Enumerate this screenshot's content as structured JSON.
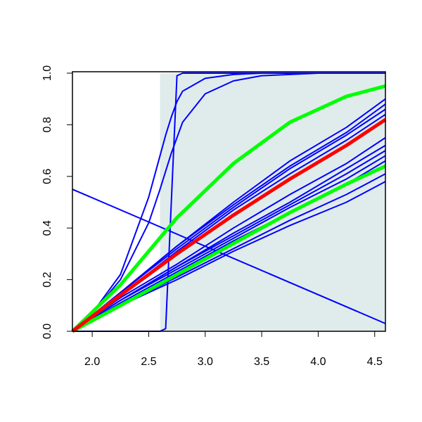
{
  "chart_data": {
    "type": "line",
    "xlim": [
      1.825,
      4.595
    ],
    "ylim": [
      0,
      1
    ],
    "xticks": [
      {
        "value": 2,
        "label": "2.0"
      },
      2.5,
      {
        "value": 3,
        "label": "3.0"
      },
      3.5,
      {
        "value": 4,
        "label": "4.0"
      },
      4.5
    ],
    "yticks": [
      {
        "value": 0,
        "label": "0.0"
      },
      0.2,
      0.4,
      0.6,
      0.8,
      {
        "value": 1,
        "label": "1.0"
      }
    ],
    "shade": {
      "from": 2.6,
      "color": "#e0ecec"
    },
    "series": [
      {
        "color": "#0000ff",
        "width": 2,
        "x": [
          1.825,
          2.0,
          2.25,
          2.5,
          2.6,
          2.65,
          2.7,
          2.75,
          2.8,
          3.0,
          3.5,
          4.0,
          4.595
        ],
        "values": [
          0,
          0,
          0,
          0,
          0,
          0.01,
          0.5,
          0.99,
          1,
          1,
          1,
          1,
          1
        ]
      },
      {
        "color": "#0000ff",
        "width": 2,
        "x": [
          1.825,
          2.0,
          2.25,
          2.5,
          2.6,
          2.65,
          2.7,
          2.75,
          2.8,
          3.0,
          3.25,
          3.5,
          4.0,
          4.595
        ],
        "values": [
          0,
          0.07,
          0.22,
          0.52,
          0.68,
          0.76,
          0.83,
          0.89,
          0.93,
          0.98,
          0.995,
          1,
          1,
          1
        ]
      },
      {
        "color": "#0000ff",
        "width": 2,
        "x": [
          1.825,
          2.0,
          2.25,
          2.5,
          2.6,
          2.65,
          2.7,
          2.75,
          2.8,
          3.0,
          3.25,
          3.5,
          3.75,
          4.0,
          4.595
        ],
        "values": [
          0,
          0.07,
          0.2,
          0.42,
          0.55,
          0.62,
          0.69,
          0.75,
          0.81,
          0.92,
          0.97,
          0.99,
          0.995,
          1,
          1
        ]
      },
      {
        "color": "#0000ff",
        "width": 2,
        "x": [
          1.825,
          4.595
        ],
        "values": [
          0.55,
          0.03
        ]
      },
      {
        "color": "#0000ff",
        "width": 2,
        "x": [
          1.825,
          2.25,
          2.75,
          3.25,
          3.75,
          4.25,
          4.595
        ],
        "values": [
          0,
          0.15,
          0.33,
          0.5,
          0.66,
          0.79,
          0.9
        ]
      },
      {
        "color": "#0000ff",
        "width": 2,
        "x": [
          1.825,
          2.25,
          2.75,
          3.25,
          3.75,
          4.25,
          4.595
        ],
        "values": [
          0,
          0.15,
          0.33,
          0.49,
          0.64,
          0.77,
          0.88
        ]
      },
      {
        "color": "#0000ff",
        "width": 2,
        "x": [
          1.825,
          2.25,
          2.75,
          3.25,
          3.75,
          4.25,
          4.595
        ],
        "values": [
          0,
          0.15,
          0.32,
          0.48,
          0.63,
          0.76,
          0.86
        ]
      },
      {
        "color": "#0000ff",
        "width": 2,
        "x": [
          1.825,
          2.25,
          2.75,
          3.25,
          3.75,
          4.25,
          4.595
        ],
        "values": [
          0,
          0.14,
          0.31,
          0.47,
          0.61,
          0.74,
          0.84
        ]
      },
      {
        "color": "#0000ff",
        "width": 2,
        "x": [
          1.825,
          2.25,
          2.75,
          3.25,
          3.75,
          4.25,
          4.595
        ],
        "values": [
          0,
          0.13,
          0.26,
          0.4,
          0.53,
          0.65,
          0.75
        ]
      },
      {
        "color": "#0000ff",
        "width": 2,
        "x": [
          1.825,
          2.25,
          2.75,
          3.25,
          3.75,
          4.25,
          4.595
        ],
        "values": [
          0,
          0.12,
          0.25,
          0.38,
          0.5,
          0.63,
          0.72
        ]
      },
      {
        "color": "#0000ff",
        "width": 2,
        "x": [
          1.825,
          2.25,
          2.75,
          3.25,
          3.75,
          4.25,
          4.595
        ],
        "values": [
          0,
          0.12,
          0.25,
          0.37,
          0.49,
          0.61,
          0.7
        ]
      },
      {
        "color": "#0000ff",
        "width": 2,
        "x": [
          1.825,
          2.25,
          2.75,
          3.25,
          3.75,
          4.25,
          4.595
        ],
        "values": [
          0,
          0.12,
          0.24,
          0.36,
          0.48,
          0.59,
          0.68
        ]
      },
      {
        "color": "#0000ff",
        "width": 2,
        "x": [
          1.825,
          2.25,
          2.75,
          3.25,
          3.75,
          4.25,
          4.595
        ],
        "values": [
          0,
          0.11,
          0.23,
          0.35,
          0.46,
          0.57,
          0.66
        ]
      },
      {
        "color": "#0000ff",
        "width": 2,
        "x": [
          1.825,
          2.25,
          2.75,
          3.25,
          3.75,
          4.25,
          4.595
        ],
        "values": [
          0,
          0.1,
          0.21,
          0.32,
          0.43,
          0.53,
          0.61
        ]
      },
      {
        "color": "#0000ff",
        "width": 2,
        "x": [
          1.825,
          2.25,
          2.75,
          3.25,
          3.75,
          4.25,
          4.595
        ],
        "values": [
          0,
          0.1,
          0.2,
          0.31,
          0.41,
          0.5,
          0.58
        ]
      },
      {
        "color": "#00ff00",
        "width": 5,
        "x": [
          1.825,
          2.25,
          2.75,
          3.25,
          3.75,
          4.25,
          4.595
        ],
        "values": [
          0,
          0.18,
          0.44,
          0.65,
          0.81,
          0.91,
          0.95
        ]
      },
      {
        "color": "#00ff00",
        "width": 5,
        "x": [
          1.825,
          2.25,
          2.75,
          3.25,
          3.75,
          4.25,
          4.595
        ],
        "values": [
          0,
          0.1,
          0.22,
          0.34,
          0.46,
          0.57,
          0.64
        ]
      },
      {
        "color": "#ff0000",
        "width": 5,
        "x": [
          1.825,
          2.25,
          2.75,
          3.25,
          3.75,
          4.25,
          4.595
        ],
        "values": [
          0,
          0.14,
          0.3,
          0.45,
          0.59,
          0.72,
          0.82
        ]
      }
    ]
  }
}
